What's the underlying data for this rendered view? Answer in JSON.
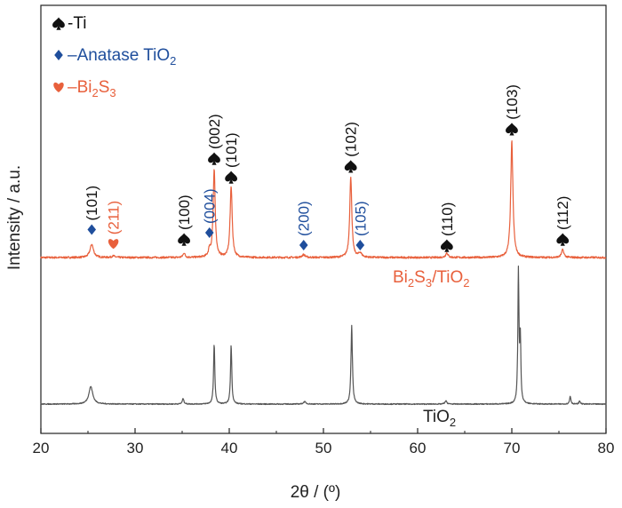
{
  "chart_data": {
    "type": "line",
    "xlabel": "2θ / (º)",
    "ylabel": "Intensity / a.u.",
    "xlim": [
      20,
      80
    ],
    "x_ticks": [
      20,
      30,
      40,
      50,
      60,
      70,
      80
    ],
    "y_ticks_shown": false,
    "grid": false,
    "legend_placement": "top-left",
    "legend": [
      {
        "marker": "spade",
        "color": "#111111",
        "label": "-Ti",
        "sub": ""
      },
      {
        "marker": "diamond",
        "color": "#1f4e9c",
        "label": "–Anatase TiO",
        "sub": "2"
      },
      {
        "marker": "heart",
        "color": "#e8603c",
        "label": "–Bi",
        "sub": "2",
        "label2": "S",
        "sub2": "3"
      }
    ],
    "series": [
      {
        "name": "Bi2S3/TiO2",
        "label_parts": [
          [
            "Bi",
            false
          ],
          [
            "2",
            true
          ],
          [
            "S",
            false
          ],
          [
            "3",
            true
          ],
          [
            "/TiO",
            false
          ],
          [
            "2",
            true
          ]
        ],
        "color": "#e8603c",
        "baseline": 0.0,
        "noise": 0.012,
        "peaks": [
          {
            "x": 25.4,
            "h": 0.085,
            "w": 0.22
          },
          {
            "x": 27.7,
            "h": 0.01,
            "w": 0.2
          },
          {
            "x": 35.2,
            "h": 0.03,
            "w": 0.12
          },
          {
            "x": 37.9,
            "h": 0.045,
            "w": 0.12
          },
          {
            "x": 38.4,
            "h": 0.56,
            "w": 0.13
          },
          {
            "x": 40.2,
            "h": 0.46,
            "w": 0.13
          },
          {
            "x": 47.9,
            "h": 0.018,
            "w": 0.2
          },
          {
            "x": 52.9,
            "h": 0.52,
            "w": 0.13
          },
          {
            "x": 53.9,
            "h": 0.028,
            "w": 0.2
          },
          {
            "x": 63.1,
            "h": 0.03,
            "w": 0.15
          },
          {
            "x": 70.0,
            "h": 0.75,
            "w": 0.14
          },
          {
            "x": 75.4,
            "h": 0.05,
            "w": 0.15
          }
        ]
      },
      {
        "name": "TiO2",
        "label_parts": [
          [
            "TiO",
            false
          ],
          [
            "2",
            true
          ]
        ],
        "color": "#555555",
        "baseline": 0.0,
        "noise": 0.006,
        "peaks": [
          {
            "x": 25.3,
            "h": 0.11,
            "w": 0.25
          },
          {
            "x": 35.1,
            "h": 0.035,
            "w": 0.1
          },
          {
            "x": 38.4,
            "h": 0.37,
            "w": 0.08
          },
          {
            "x": 40.2,
            "h": 0.37,
            "w": 0.08
          },
          {
            "x": 48.0,
            "h": 0.015,
            "w": 0.15
          },
          {
            "x": 53.0,
            "h": 0.49,
            "w": 0.09
          },
          {
            "x": 63.0,
            "h": 0.02,
            "w": 0.12
          },
          {
            "x": 70.7,
            "h": 0.82,
            "w": 0.07
          },
          {
            "x": 70.9,
            "h": 0.4,
            "w": 0.07
          },
          {
            "x": 76.2,
            "h": 0.05,
            "w": 0.08
          },
          {
            "x": 77.2,
            "h": 0.02,
            "w": 0.08
          }
        ]
      }
    ],
    "annotations": [
      {
        "x": 25.4,
        "text": "(101)",
        "marker": "diamond",
        "color": "#1f4e9c",
        "label_color": "#111111",
        "h": 0.18
      },
      {
        "x": 27.7,
        "text": "(211)",
        "marker": "heart",
        "color": "#e8603c",
        "label_color": "#e8603c",
        "h": 0.09
      },
      {
        "x": 35.2,
        "text": "(100)",
        "marker": "spade",
        "color": "#111111",
        "label_color": "#111111",
        "h": 0.12
      },
      {
        "x": 37.9,
        "text": "(004)",
        "marker": "diamond",
        "color": "#1f4e9c",
        "label_color": "#1f4e9c",
        "h": 0.16
      },
      {
        "x": 38.4,
        "text": "(002)",
        "marker": "spade",
        "color": "#111111",
        "label_color": "#111111",
        "h": 0.64
      },
      {
        "x": 40.2,
        "text": "(101)",
        "marker": "spade",
        "color": "#111111",
        "label_color": "#111111",
        "h": 0.52
      },
      {
        "x": 47.9,
        "text": "(200)",
        "marker": "diamond",
        "color": "#1f4e9c",
        "label_color": "#1f4e9c",
        "h": 0.08
      },
      {
        "x": 52.9,
        "text": "(102)",
        "marker": "spade",
        "color": "#111111",
        "label_color": "#111111",
        "h": 0.59
      },
      {
        "x": 53.9,
        "text": "(105)",
        "marker": "diamond",
        "color": "#1f4e9c",
        "label_color": "#1f4e9c",
        "h": 0.08
      },
      {
        "x": 63.1,
        "text": "(110)",
        "marker": "spade",
        "color": "#111111",
        "label_color": "#111111",
        "h": 0.08
      },
      {
        "x": 70.0,
        "text": "(103)",
        "marker": "spade",
        "color": "#111111",
        "label_color": "#111111",
        "h": 0.83
      },
      {
        "x": 75.4,
        "text": "(112)",
        "marker": "spade",
        "color": "#111111",
        "label_color": "#111111",
        "h": 0.12
      }
    ]
  }
}
